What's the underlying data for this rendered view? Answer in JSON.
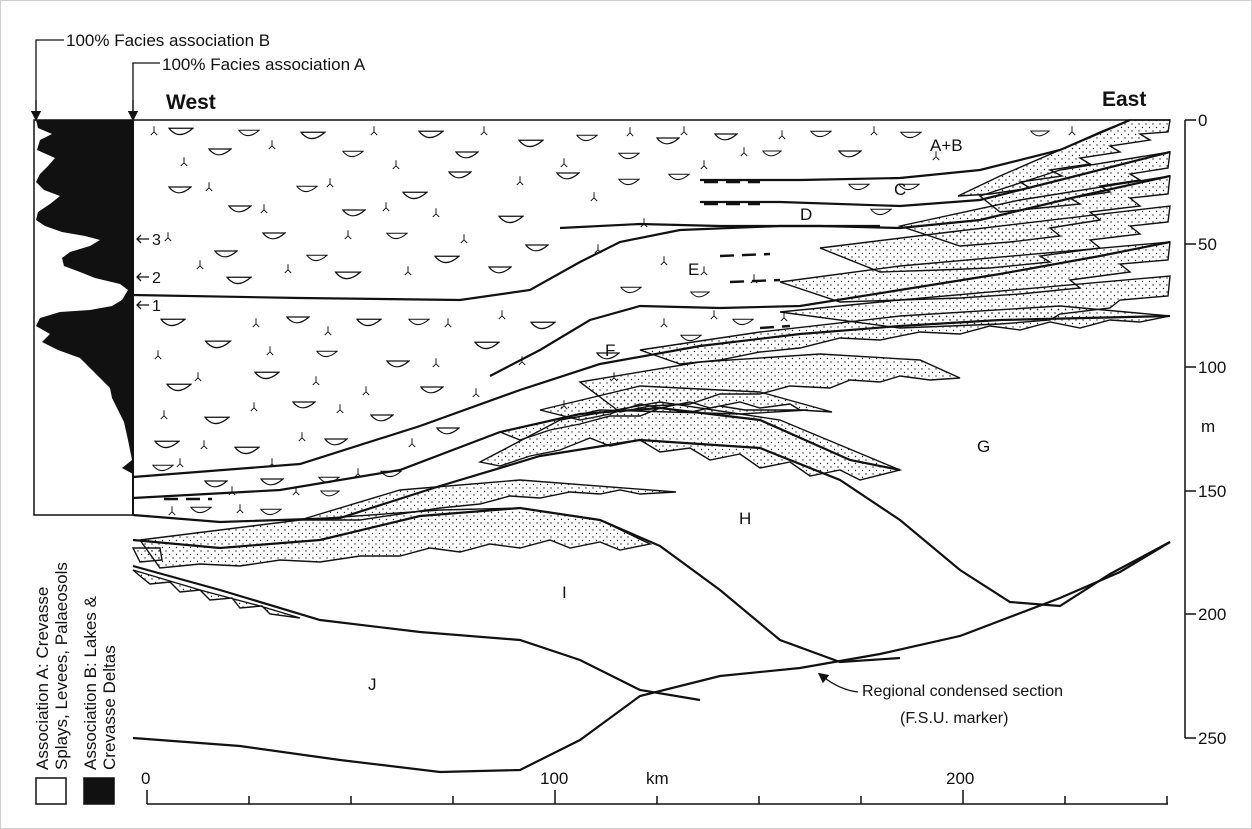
{
  "top_labels": {
    "facies_b": "100% Facies association B",
    "facies_a": "100% Facies association A"
  },
  "direction": {
    "west": "West",
    "east": "East"
  },
  "log_markers": [
    "3",
    "2",
    "1"
  ],
  "units": [
    "A+B",
    "C",
    "D",
    "E",
    "F",
    "G",
    "H",
    "I",
    "J"
  ],
  "depth_axis": {
    "ticks": [
      "0",
      "50",
      "100",
      "150",
      "200",
      "250"
    ],
    "unit": "m"
  },
  "distance_axis": {
    "ticks": [
      "0",
      "100",
      "200"
    ],
    "unit": "km"
  },
  "annotation": {
    "line1": "Regional condensed section",
    "line2": "(F.S.U. marker)"
  },
  "legend": {
    "assoc_a_line1": "Association A: Crevasse",
    "assoc_a_line2": "Splays, Levees, Palaeosols",
    "assoc_b_line1": "Association B: Lakes &",
    "assoc_b_line2": "Crevasse Deltas"
  }
}
